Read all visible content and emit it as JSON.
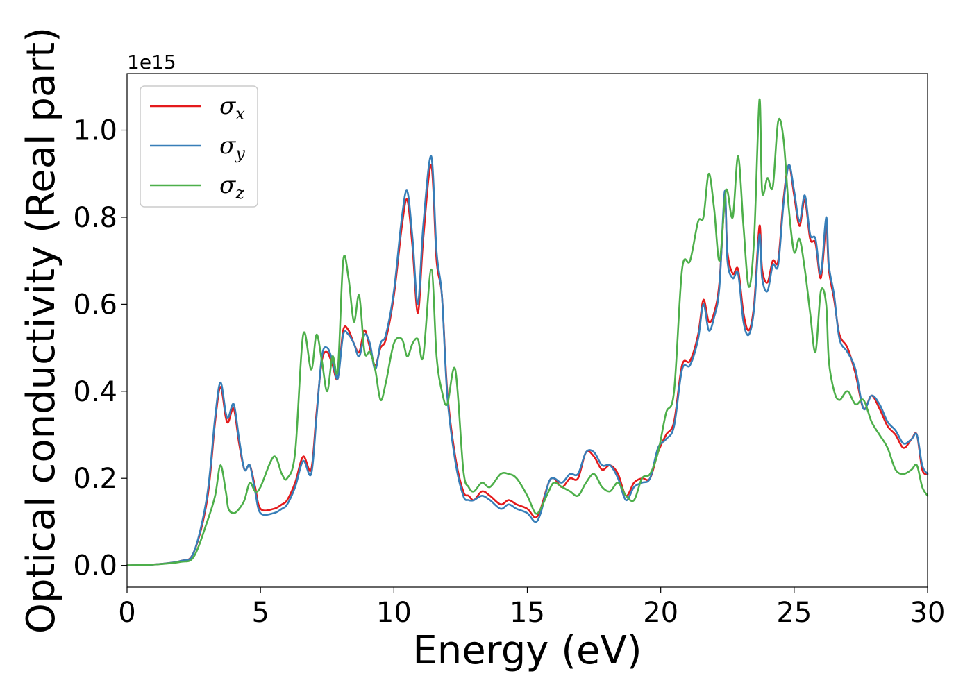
{
  "chart_data": {
    "type": "line",
    "xlabel": "Energy (eV)",
    "ylabel": "Optical conductivity (Real part)",
    "y_offset_text": "1e15",
    "xlim": [
      0,
      30
    ],
    "ylim": [
      -0.05,
      1.13
    ],
    "x_ticks": [
      0,
      5,
      10,
      15,
      20,
      25,
      30
    ],
    "x_tick_labels": [
      "0",
      "5",
      "10",
      "15",
      "20",
      "25",
      "30"
    ],
    "y_ticks": [
      0.0,
      0.2,
      0.4,
      0.6,
      0.8,
      1.0
    ],
    "y_tick_labels": [
      "0.0",
      "0.2",
      "0.4",
      "0.6",
      "0.8",
      "1.0"
    ],
    "grid": false,
    "legend_position": "upper-left",
    "x": [
      0,
      1,
      2,
      2.5,
      3,
      3.3,
      3.5,
      3.7,
      3.8,
      4,
      4.2,
      4.4,
      4.6,
      4.8,
      5,
      5.5,
      5.8,
      6,
      6.3,
      6.6,
      6.9,
      7.1,
      7.3,
      7.5,
      7.7,
      7.9,
      8.1,
      8.3,
      8.5,
      8.7,
      8.9,
      9.1,
      9.3,
      9.5,
      9.7,
      10,
      10.3,
      10.5,
      10.7,
      10.9,
      11.1,
      11.4,
      11.6,
      11.8,
      12,
      12.3,
      12.6,
      12.8,
      13,
      13.3,
      13.6,
      14,
      14.3,
      14.6,
      15,
      15.3,
      15.5,
      15.8,
      16,
      16.3,
      16.6,
      16.9,
      17.2,
      17.5,
      17.8,
      18.1,
      18.4,
      18.7,
      19,
      19.3,
      19.6,
      19.9,
      20.2,
      20.5,
      20.8,
      21.1,
      21.4,
      21.6,
      21.8,
      22,
      22.2,
      22.4,
      22.5,
      22.7,
      22.9,
      23.1,
      23.3,
      23.5,
      23.7,
      23.8,
      24,
      24.2,
      24.4,
      24.6,
      24.8,
      25,
      25.2,
      25.4,
      25.6,
      25.8,
      26,
      26.2,
      26.3,
      26.5,
      26.7,
      27,
      27.3,
      27.6,
      27.9,
      28.2,
      28.5,
      28.8,
      29.1,
      29.4,
      29.6,
      29.8,
      30
    ],
    "series": [
      {
        "name": "σx",
        "color": "#e41a1c",
        "values": [
          0,
          0.002,
          0.01,
          0.03,
          0.15,
          0.33,
          0.41,
          0.34,
          0.33,
          0.36,
          0.28,
          0.22,
          0.23,
          0.18,
          0.13,
          0.13,
          0.14,
          0.15,
          0.19,
          0.25,
          0.22,
          0.35,
          0.47,
          0.49,
          0.46,
          0.43,
          0.54,
          0.54,
          0.51,
          0.49,
          0.54,
          0.5,
          0.46,
          0.5,
          0.52,
          0.62,
          0.78,
          0.84,
          0.73,
          0.58,
          0.75,
          0.92,
          0.7,
          0.62,
          0.4,
          0.25,
          0.17,
          0.16,
          0.15,
          0.17,
          0.16,
          0.14,
          0.15,
          0.14,
          0.13,
          0.11,
          0.13,
          0.19,
          0.2,
          0.18,
          0.2,
          0.2,
          0.26,
          0.25,
          0.22,
          0.23,
          0.21,
          0.16,
          0.19,
          0.2,
          0.2,
          0.26,
          0.3,
          0.33,
          0.46,
          0.47,
          0.53,
          0.61,
          0.56,
          0.58,
          0.65,
          0.84,
          0.72,
          0.67,
          0.68,
          0.58,
          0.54,
          0.6,
          0.78,
          0.68,
          0.65,
          0.7,
          0.7,
          0.84,
          0.92,
          0.85,
          0.78,
          0.84,
          0.75,
          0.74,
          0.66,
          0.78,
          0.68,
          0.61,
          0.53,
          0.5,
          0.44,
          0.36,
          0.39,
          0.36,
          0.32,
          0.3,
          0.27,
          0.29,
          0.3,
          0.22,
          0.21
        ]
      },
      {
        "name": "σy",
        "color": "#377eb8",
        "values": [
          0,
          0.002,
          0.01,
          0.03,
          0.16,
          0.34,
          0.42,
          0.35,
          0.34,
          0.37,
          0.29,
          0.22,
          0.23,
          0.17,
          0.12,
          0.12,
          0.13,
          0.14,
          0.18,
          0.24,
          0.21,
          0.34,
          0.48,
          0.5,
          0.47,
          0.43,
          0.53,
          0.53,
          0.51,
          0.48,
          0.53,
          0.51,
          0.45,
          0.51,
          0.53,
          0.63,
          0.8,
          0.86,
          0.75,
          0.6,
          0.78,
          0.94,
          0.72,
          0.62,
          0.39,
          0.24,
          0.16,
          0.15,
          0.15,
          0.16,
          0.15,
          0.13,
          0.14,
          0.13,
          0.12,
          0.1,
          0.12,
          0.19,
          0.2,
          0.19,
          0.21,
          0.21,
          0.26,
          0.26,
          0.23,
          0.23,
          0.2,
          0.15,
          0.18,
          0.19,
          0.2,
          0.27,
          0.29,
          0.32,
          0.45,
          0.46,
          0.52,
          0.6,
          0.54,
          0.57,
          0.64,
          0.86,
          0.7,
          0.66,
          0.67,
          0.56,
          0.53,
          0.59,
          0.76,
          0.66,
          0.63,
          0.69,
          0.69,
          0.83,
          0.92,
          0.86,
          0.79,
          0.85,
          0.76,
          0.75,
          0.67,
          0.8,
          0.69,
          0.62,
          0.52,
          0.49,
          0.45,
          0.36,
          0.39,
          0.37,
          0.33,
          0.31,
          0.28,
          0.29,
          0.3,
          0.23,
          0.21
        ]
      },
      {
        "name": "σz",
        "color": "#4daf4a",
        "values": [
          0,
          0.002,
          0.008,
          0.02,
          0.1,
          0.16,
          0.23,
          0.17,
          0.13,
          0.12,
          0.13,
          0.15,
          0.19,
          0.17,
          0.18,
          0.25,
          0.21,
          0.2,
          0.26,
          0.53,
          0.45,
          0.53,
          0.47,
          0.4,
          0.48,
          0.45,
          0.7,
          0.66,
          0.56,
          0.62,
          0.49,
          0.49,
          0.45,
          0.38,
          0.42,
          0.51,
          0.52,
          0.48,
          0.51,
          0.52,
          0.48,
          0.68,
          0.48,
          0.4,
          0.37,
          0.45,
          0.22,
          0.18,
          0.17,
          0.19,
          0.18,
          0.21,
          0.21,
          0.2,
          0.16,
          0.12,
          0.13,
          0.17,
          0.19,
          0.18,
          0.17,
          0.16,
          0.19,
          0.21,
          0.18,
          0.17,
          0.19,
          0.16,
          0.15,
          0.2,
          0.21,
          0.26,
          0.35,
          0.4,
          0.68,
          0.7,
          0.79,
          0.8,
          0.9,
          0.82,
          0.7,
          0.84,
          0.86,
          0.8,
          0.94,
          0.78,
          0.64,
          0.75,
          1.07,
          0.86,
          0.89,
          0.87,
          1.02,
          0.98,
          0.82,
          0.72,
          0.75,
          0.68,
          0.58,
          0.49,
          0.63,
          0.6,
          0.47,
          0.4,
          0.38,
          0.4,
          0.37,
          0.38,
          0.33,
          0.3,
          0.27,
          0.22,
          0.21,
          0.22,
          0.23,
          0.18,
          0.16
        ]
      }
    ]
  }
}
